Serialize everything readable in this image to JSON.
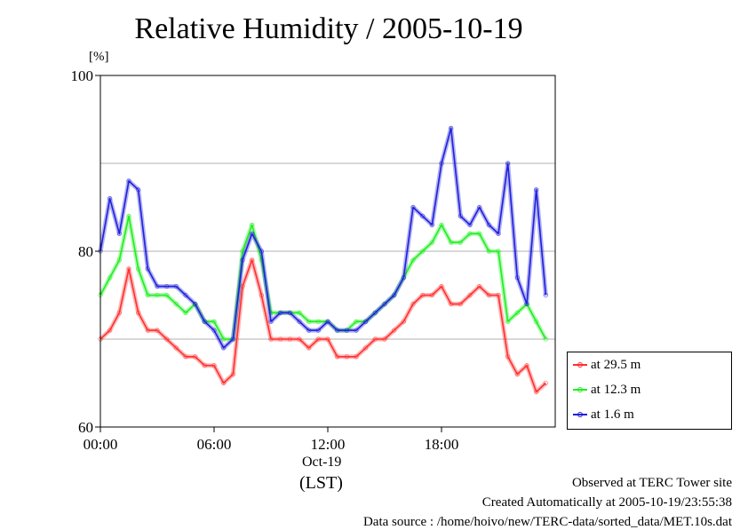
{
  "chart_data": {
    "type": "line",
    "title": "Relative Humidity / 2005-10-19",
    "ylabel": "[%]",
    "xlabel": "(LST)",
    "date_label": "Oct-19",
    "ylim": [
      60,
      100
    ],
    "xlim": [
      0,
      24
    ],
    "x_ticks": [
      "00:00",
      "06:00",
      "12:00",
      "18:00"
    ],
    "y_ticks": [
      "60",
      "80",
      "100"
    ],
    "grid": true,
    "legend_position": "bottom-right",
    "x": [
      0,
      0.5,
      1,
      1.5,
      2,
      2.5,
      3,
      3.5,
      4,
      4.5,
      5,
      5.5,
      6,
      6.5,
      7,
      7.5,
      8,
      8.5,
      9,
      9.5,
      10,
      10.5,
      11,
      11.5,
      12,
      12.5,
      13,
      13.5,
      14,
      14.5,
      15,
      15.5,
      16,
      16.5,
      17,
      17.5,
      18,
      18.5,
      19,
      19.5,
      20,
      20.5,
      21,
      21.5,
      22,
      22.5,
      23,
      23.5
    ],
    "series": [
      {
        "name": "at 29.5 m",
        "color": "#ff3030",
        "values": [
          70,
          71,
          73,
          78,
          73,
          71,
          71,
          70,
          69,
          68,
          68,
          67,
          67,
          65,
          66,
          76,
          79,
          75,
          70,
          70,
          70,
          70,
          69,
          70,
          70,
          68,
          68,
          68,
          69,
          70,
          70,
          71,
          72,
          74,
          75,
          75,
          76,
          74,
          74,
          75,
          76,
          75,
          75,
          68,
          66,
          67,
          64,
          65
        ]
      },
      {
        "name": "at 12.3 m",
        "color": "#20ee20",
        "values": [
          75,
          77,
          79,
          84,
          78,
          75,
          75,
          75,
          74,
          73,
          74,
          72,
          72,
          70,
          70,
          80,
          83,
          79,
          73,
          73,
          73,
          73,
          72,
          72,
          72,
          71,
          71,
          72,
          72,
          73,
          74,
          75,
          77,
          79,
          80,
          81,
          83,
          81,
          81,
          82,
          82,
          80,
          80,
          72,
          73,
          74,
          72,
          70
        ]
      },
      {
        "name": "at 1.6 m",
        "color": "#2020dd",
        "values": [
          80,
          86,
          82,
          88,
          87,
          78,
          76,
          76,
          76,
          75,
          74,
          72,
          71,
          69,
          70,
          79,
          82,
          80,
          72,
          73,
          73,
          72,
          71,
          71,
          72,
          71,
          71,
          71,
          72,
          73,
          74,
          75,
          77,
          85,
          84,
          83,
          90,
          94,
          84,
          83,
          85,
          83,
          82,
          90,
          77,
          74,
          87,
          75
        ]
      }
    ]
  },
  "footer": {
    "line1": "Observed at TERC Tower site",
    "line2": "Created Automatically at 2005-10-19/23:55:38",
    "line3": "Data source : /home/hoivo/new/TERC-data/sorted_data/MET.10s.dat"
  }
}
